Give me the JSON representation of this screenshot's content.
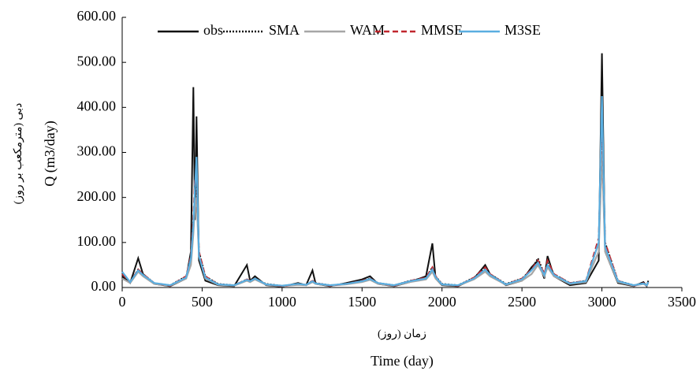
{
  "chart_data": {
    "type": "line",
    "y_label": "Q (m3/day)",
    "y_label_fa": "دبی (مترمکعب بر روز)",
    "x_label_fa": "زمان (روز)",
    "x_label": "Time (day)",
    "xlim": [
      0,
      3500
    ],
    "xticks": [
      0,
      500,
      1000,
      1500,
      2000,
      2500,
      3000,
      3500
    ],
    "ylim": [
      0,
      600
    ],
    "yticks": [
      {
        "value": 0,
        "label": "0.00"
      },
      {
        "value": 100,
        "label": "100.00"
      },
      {
        "value": 200,
        "label": "200.00"
      },
      {
        "value": 300,
        "label": "300.00"
      },
      {
        "value": 400,
        "label": "400.00"
      },
      {
        "value": 500,
        "label": "500.00"
      },
      {
        "value": 600,
        "label": "600.00"
      }
    ],
    "legend": "top",
    "x": [
      0,
      50,
      100,
      130,
      200,
      300,
      400,
      430,
      445,
      455,
      465,
      480,
      520,
      600,
      700,
      780,
      800,
      830,
      900,
      1000,
      1100,
      1150,
      1190,
      1210,
      1300,
      1400,
      1500,
      1550,
      1600,
      1700,
      1800,
      1900,
      1940,
      1960,
      2000,
      2100,
      2200,
      2270,
      2300,
      2400,
      2500,
      2560,
      2600,
      2640,
      2660,
      2700,
      2800,
      2900,
      2980,
      3000,
      3020,
      3100,
      3200,
      3260,
      3280,
      3290
    ],
    "series": [
      {
        "name": "obs",
        "color": "#111111",
        "style": "solid",
        "values": [
          25,
          10,
          65,
          30,
          8,
          3,
          20,
          80,
          445,
          150,
          380,
          60,
          15,
          5,
          3,
          50,
          15,
          25,
          5,
          2,
          10,
          5,
          38,
          8,
          3,
          10,
          18,
          25,
          8,
          3,
          12,
          25,
          98,
          20,
          5,
          3,
          20,
          50,
          30,
          5,
          15,
          45,
          60,
          20,
          70,
          25,
          5,
          10,
          60,
          520,
          80,
          10,
          3,
          12,
          3,
          15
        ]
      },
      {
        "name": "SMA",
        "color": "#111111",
        "style": "dotted",
        "values": [
          30,
          12,
          40,
          30,
          10,
          5,
          25,
          60,
          150,
          200,
          250,
          80,
          25,
          8,
          5,
          18,
          15,
          20,
          8,
          4,
          8,
          6,
          15,
          10,
          5,
          8,
          15,
          20,
          10,
          5,
          15,
          22,
          45,
          25,
          8,
          5,
          22,
          45,
          30,
          8,
          20,
          40,
          65,
          30,
          55,
          30,
          10,
          15,
          100,
          380,
          100,
          15,
          5,
          10,
          5,
          12
        ]
      },
      {
        "name": "WAM",
        "color": "#a6a6a6",
        "style": "solid",
        "values": [
          20,
          10,
          35,
          25,
          8,
          4,
          20,
          50,
          120,
          180,
          200,
          70,
          20,
          6,
          4,
          15,
          12,
          18,
          6,
          3,
          6,
          5,
          12,
          8,
          4,
          7,
          12,
          17,
          8,
          4,
          12,
          18,
          35,
          20,
          6,
          4,
          18,
          35,
          25,
          6,
          15,
          30,
          50,
          25,
          45,
          25,
          8,
          12,
          80,
          300,
          80,
          12,
          4,
          8,
          4,
          10
        ]
      },
      {
        "name": "MMSE",
        "color": "#c0262d",
        "style": "dashed",
        "values": [
          30,
          12,
          40,
          30,
          10,
          4,
          25,
          70,
          160,
          240,
          260,
          80,
          25,
          7,
          5,
          18,
          15,
          20,
          7,
          3,
          8,
          6,
          15,
          10,
          4,
          8,
          15,
          20,
          10,
          4,
          15,
          22,
          45,
          25,
          7,
          4,
          22,
          45,
          30,
          7,
          20,
          40,
          60,
          30,
          60,
          30,
          10,
          15,
          110,
          385,
          100,
          15,
          4,
          10,
          4,
          12
        ]
      },
      {
        "name": "M3SE",
        "color": "#5aaee0",
        "style": "solid",
        "values": [
          35,
          12,
          38,
          28,
          10,
          5,
          22,
          65,
          140,
          220,
          290,
          70,
          22,
          7,
          5,
          17,
          14,
          20,
          7,
          4,
          8,
          6,
          14,
          9,
          5,
          8,
          14,
          19,
          10,
          5,
          14,
          20,
          40,
          23,
          7,
          5,
          20,
          40,
          28,
          7,
          18,
          38,
          55,
          28,
          50,
          28,
          9,
          14,
          100,
          425,
          90,
          14,
          5,
          9,
          5,
          12
        ]
      }
    ]
  }
}
